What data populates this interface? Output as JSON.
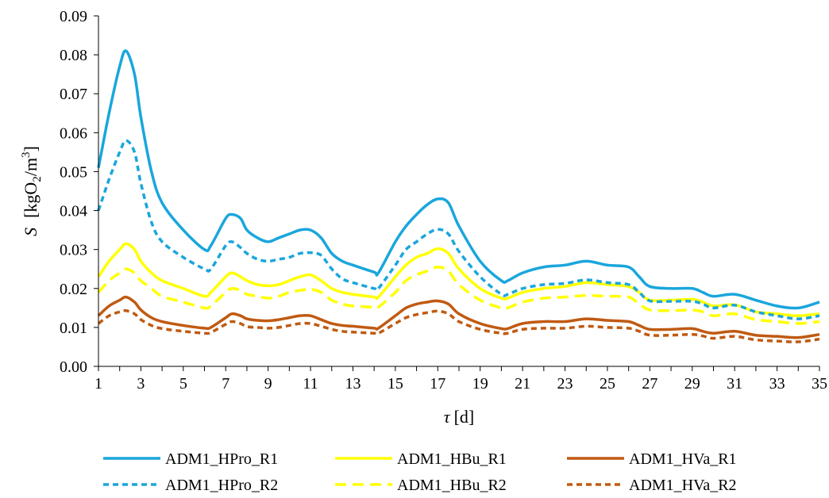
{
  "chart_data": {
    "type": "line",
    "xlabel": "τ [d]",
    "xlabel_parts": {
      "symbol": "τ",
      "unit": "[d]"
    },
    "ylabel": "S  [kgO2/m3]",
    "ylabel_parts": {
      "symbol": "S",
      "pre": "[kgO",
      "sub": "2",
      "mid": "/m",
      "sup": "3",
      "post": "]"
    },
    "xlim": [
      1,
      35
    ],
    "ylim": [
      0,
      0.09
    ],
    "xticks": [
      "1",
      "3",
      "5",
      "7",
      "9",
      "11",
      "13",
      "15",
      "17",
      "19",
      "21",
      "23",
      "25",
      "27",
      "29",
      "31",
      "33",
      "35"
    ],
    "yticks": [
      "0.00",
      "0.01",
      "0.02",
      "0.03",
      "0.04",
      "0.05",
      "0.06",
      "0.07",
      "0.08",
      "0.09"
    ],
    "grid": false,
    "legend_position": "bottom",
    "x": [
      1,
      1.5,
      2,
      2.3,
      2.7,
      3,
      3.5,
      4,
      5,
      6,
      6.3,
      7,
      7.3,
      7.7,
      8,
      8.5,
      9,
      9.5,
      10,
      10.5,
      11,
      11.5,
      12,
      12.5,
      13,
      14,
      14.2,
      15,
      15.5,
      16,
      16.5,
      17,
      17.5,
      18,
      19,
      20,
      20.3,
      21,
      22,
      23,
      24,
      25,
      26,
      26.5,
      27,
      28,
      29,
      29.5,
      30,
      31,
      32,
      33,
      34,
      35
    ],
    "series": [
      {
        "name": "ADM1_HPro_R1",
        "color": "#1aa6dc",
        "dash": "solid",
        "values": [
          0.051,
          0.065,
          0.077,
          0.081,
          0.075,
          0.064,
          0.05,
          0.042,
          0.035,
          0.03,
          0.031,
          0.038,
          0.039,
          0.038,
          0.035,
          0.033,
          0.032,
          0.033,
          0.034,
          0.035,
          0.035,
          0.033,
          0.029,
          0.027,
          0.026,
          0.0242,
          0.024,
          0.032,
          0.036,
          0.039,
          0.0415,
          0.043,
          0.042,
          0.036,
          0.027,
          0.022,
          0.022,
          0.024,
          0.0255,
          0.026,
          0.027,
          0.026,
          0.0255,
          0.023,
          0.0205,
          0.02,
          0.02,
          0.019,
          0.018,
          0.0185,
          0.017,
          0.0155,
          0.015,
          0.0165
        ]
      },
      {
        "name": "ADM1_HBu_R1",
        "color": "#ffff00",
        "dash": "solid",
        "values": [
          0.023,
          0.027,
          0.03,
          0.0315,
          0.03,
          0.027,
          0.024,
          0.022,
          0.02,
          0.018,
          0.019,
          0.023,
          0.024,
          0.023,
          0.022,
          0.021,
          0.0207,
          0.021,
          0.022,
          0.023,
          0.0235,
          0.022,
          0.02,
          0.019,
          0.0185,
          0.0178,
          0.0178,
          0.023,
          0.026,
          0.028,
          0.029,
          0.0302,
          0.029,
          0.025,
          0.02,
          0.0175,
          0.0175,
          0.019,
          0.02,
          0.0205,
          0.0215,
          0.021,
          0.0205,
          0.019,
          0.017,
          0.017,
          0.0172,
          0.0165,
          0.0155,
          0.0158,
          0.014,
          0.0135,
          0.013,
          0.0135
        ]
      },
      {
        "name": "ADM1_HVa_R1",
        "color": "#c05a12",
        "dash": "solid",
        "values": [
          0.013,
          0.0155,
          0.017,
          0.0178,
          0.0165,
          0.0145,
          0.0125,
          0.0115,
          0.0105,
          0.0098,
          0.01,
          0.0125,
          0.0135,
          0.013,
          0.0122,
          0.0118,
          0.0117,
          0.012,
          0.0125,
          0.013,
          0.013,
          0.012,
          0.011,
          0.0105,
          0.0103,
          0.0098,
          0.0098,
          0.013,
          0.015,
          0.016,
          0.0165,
          0.0168,
          0.016,
          0.0135,
          0.011,
          0.0097,
          0.0097,
          0.011,
          0.0115,
          0.0115,
          0.0122,
          0.0118,
          0.0115,
          0.0105,
          0.0095,
          0.0095,
          0.0097,
          0.009,
          0.0085,
          0.009,
          0.008,
          0.0077,
          0.0074,
          0.0082
        ]
      },
      {
        "name": "ADM1_HPro_R2",
        "color": "#1aa6dc",
        "dash": "dashed",
        "values": [
          0.04,
          0.048,
          0.055,
          0.058,
          0.055,
          0.047,
          0.037,
          0.032,
          0.028,
          0.025,
          0.025,
          0.031,
          0.032,
          0.0305,
          0.029,
          0.0275,
          0.027,
          0.0275,
          0.028,
          0.029,
          0.0292,
          0.0285,
          0.025,
          0.0225,
          0.0215,
          0.02,
          0.02,
          0.026,
          0.03,
          0.032,
          0.034,
          0.0352,
          0.034,
          0.0295,
          0.023,
          0.0185,
          0.0185,
          0.02,
          0.021,
          0.0213,
          0.0222,
          0.0215,
          0.021,
          0.019,
          0.0168,
          0.0167,
          0.0167,
          0.016,
          0.015,
          0.0157,
          0.014,
          0.013,
          0.0122,
          0.013
        ]
      },
      {
        "name": "ADM1_HBu_R2",
        "color": "#ffff00",
        "dash": "dashed",
        "values": [
          0.019,
          0.022,
          0.024,
          0.025,
          0.024,
          0.022,
          0.02,
          0.018,
          0.0165,
          0.015,
          0.0155,
          0.019,
          0.02,
          0.0195,
          0.0185,
          0.018,
          0.0175,
          0.018,
          0.019,
          0.0195,
          0.0198,
          0.019,
          0.017,
          0.016,
          0.0155,
          0.0152,
          0.0152,
          0.019,
          0.022,
          0.0235,
          0.0245,
          0.0255,
          0.0245,
          0.021,
          0.017,
          0.015,
          0.015,
          0.0165,
          0.0175,
          0.0178,
          0.0182,
          0.018,
          0.0178,
          0.016,
          0.0145,
          0.0143,
          0.0145,
          0.014,
          0.013,
          0.0135,
          0.012,
          0.0115,
          0.011,
          0.0115
        ]
      },
      {
        "name": "ADM1_HVa_R2",
        "color": "#c05a12",
        "dash": "dashed",
        "values": [
          0.011,
          0.013,
          0.014,
          0.0143,
          0.0135,
          0.012,
          0.0105,
          0.0097,
          0.009,
          0.0085,
          0.0087,
          0.0108,
          0.0115,
          0.011,
          0.0102,
          0.01,
          0.0098,
          0.01,
          0.0105,
          0.011,
          0.011,
          0.0103,
          0.0095,
          0.009,
          0.0088,
          0.0085,
          0.0085,
          0.011,
          0.0125,
          0.0133,
          0.0138,
          0.0142,
          0.0135,
          0.0115,
          0.0095,
          0.0085,
          0.0085,
          0.0095,
          0.0098,
          0.0098,
          0.0103,
          0.01,
          0.0098,
          0.009,
          0.008,
          0.008,
          0.0082,
          0.0078,
          0.0072,
          0.0077,
          0.0068,
          0.0065,
          0.0063,
          0.007
        ]
      }
    ]
  }
}
